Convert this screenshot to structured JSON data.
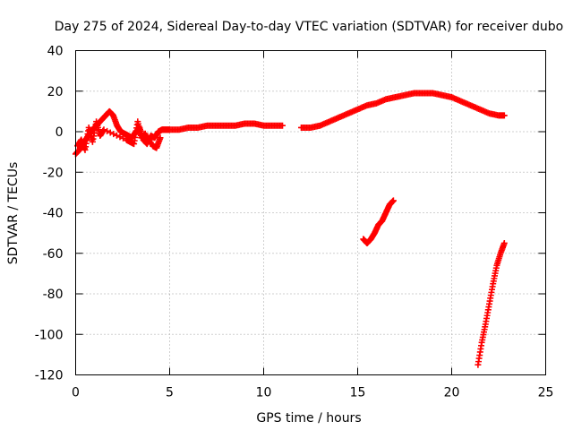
{
  "chart_data": {
    "type": "scatter",
    "title": "Day 275 of 2024, Sidereal Day-to-day VTEC variation (SDTVAR) for receiver dubo",
    "xlabel": "GPS time / hours",
    "ylabel": "SDTVAR / TECUs",
    "xlim": [
      0,
      25
    ],
    "ylim": [
      -120,
      40
    ],
    "xticks": [
      0,
      5,
      10,
      15,
      20,
      25
    ],
    "yticks": [
      -120,
      -100,
      -80,
      -60,
      -40,
      -20,
      0,
      20,
      40
    ],
    "grid": true,
    "marker": "plus",
    "color": "#ff0000",
    "series": [
      {
        "name": "SDTVAR main arc",
        "x": [
          0.0,
          0.2,
          0.4,
          0.6,
          0.8,
          1.0,
          1.2,
          1.4,
          1.6,
          1.8,
          2.0,
          2.2,
          2.4,
          2.6,
          2.8,
          3.0,
          3.2,
          3.4,
          3.6,
          3.8,
          4.0,
          4.2,
          4.4,
          4.6,
          4.8,
          5.0,
          5.5,
          6.0,
          6.5,
          7.0,
          7.5,
          8.0,
          8.5,
          9.0,
          9.5,
          10.0,
          10.5,
          11.0
        ],
        "y": [
          -11,
          -9,
          -6,
          -3,
          0,
          2,
          4,
          6,
          8,
          10,
          8,
          3,
          0,
          -1,
          -2,
          -3,
          0,
          2,
          -4,
          -6,
          -2,
          -3,
          0,
          1,
          1,
          1,
          1,
          2,
          2,
          3,
          3,
          3,
          3,
          4,
          4,
          3,
          3,
          3
        ]
      },
      {
        "name": "SDTVAR early scatter",
        "x": [
          0.1,
          0.3,
          0.5,
          0.7,
          0.9,
          1.1,
          1.3,
          1.5,
          2.7,
          2.9,
          3.1,
          3.3,
          3.5,
          3.7,
          4.1,
          4.3,
          4.5
        ],
        "y": [
          -7,
          -4,
          -9,
          2,
          -5,
          5,
          -2,
          1,
          -4,
          -5,
          -6,
          5,
          -3,
          -1,
          -7,
          -8,
          -3
        ]
      },
      {
        "name": "SDTVAR afternoon arc",
        "x": [
          12.0,
          12.5,
          13.0,
          13.5,
          14.0,
          14.5,
          15.0,
          15.5,
          16.0,
          16.5,
          17.0,
          17.5,
          18.0,
          18.5,
          19.0,
          19.5,
          20.0,
          20.5,
          21.0,
          21.5,
          22.0,
          22.5,
          22.8
        ],
        "y": [
          2,
          2,
          3,
          5,
          7,
          9,
          11,
          13,
          14,
          16,
          17,
          18,
          19,
          19,
          19,
          18,
          17,
          15,
          13,
          11,
          9,
          8,
          8
        ]
      },
      {
        "name": "SDTVAR segment near 16h",
        "x": [
          15.3,
          15.5,
          15.7,
          15.9,
          16.1,
          16.3,
          16.5,
          16.7,
          16.9
        ],
        "y": [
          -53,
          -55,
          -53,
          -50,
          -46,
          -44,
          -40,
          -36,
          -34
        ]
      },
      {
        "name": "SDTVAR segment near 22h",
        "x": [
          21.4,
          21.6,
          21.8,
          22.0,
          22.2,
          22.4,
          22.6,
          22.8
        ],
        "y": [
          -115,
          -104,
          -95,
          -85,
          -75,
          -66,
          -60,
          -55
        ]
      }
    ]
  }
}
